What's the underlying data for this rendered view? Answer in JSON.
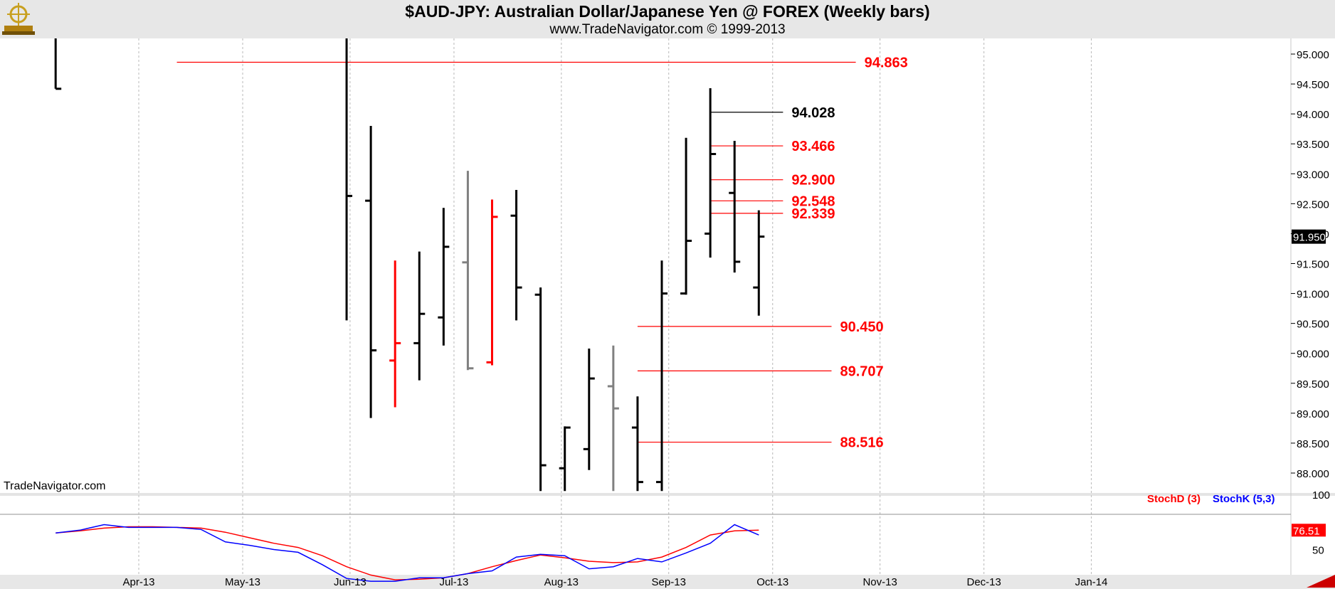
{
  "header": {
    "title": "$AUD-JPY:  Australian Dollar/Japanese Yen @ FOREX  (Weekly bars)",
    "subtitle": "www.TradeNavigator.com © 1999-2013"
  },
  "watermark": "TradeNavigator.com",
  "indicator_legend": {
    "stoch_d": "StochD (3)",
    "stoch_k": "StochK (5,3)"
  },
  "colors": {
    "up_bar": "#000000",
    "down_bar": "#ff0000",
    "neutral_bar": "#808080",
    "level_red": "#ff0000",
    "level_black": "#000000",
    "stoch_d": "#ff0000",
    "stoch_k": "#0000ff",
    "header_bg": "#e7e7e7"
  },
  "chart_data": [
    {
      "type": "ohlc",
      "x_type": "weekly-date",
      "x_ticks": [
        "Apr-13",
        "May-13",
        "Jun-13",
        "Jul-13",
        "Aug-13",
        "Sep-13",
        "Oct-13",
        "Nov-13",
        "Dec-13",
        "Jan-14"
      ],
      "y_ticks": [
        "88.000",
        "88.500",
        "89.000",
        "89.500",
        "90.000",
        "90.500",
        "91.000",
        "91.500",
        "92.000",
        "92.500",
        "93.000",
        "93.500",
        "94.000",
        "94.500",
        "95.000"
      ],
      "ylim": [
        87.7,
        95.3
      ],
      "last_price_label": "91.950",
      "last_price": 91.95,
      "bars": [
        {
          "date": "2013-03-08",
          "high": 95.3,
          "low": 94.42,
          "open": 95.3,
          "close": 94.42,
          "color": "black"
        },
        {
          "date": "2013-05-31",
          "high": 95.3,
          "low": 90.55,
          "open": 95.3,
          "close": 92.63,
          "color": "black"
        },
        {
          "date": "2013-06-07",
          "high": 93.8,
          "low": 88.92,
          "open": 92.55,
          "close": 90.05,
          "color": "black"
        },
        {
          "date": "2013-06-14",
          "high": 91.55,
          "low": 89.1,
          "open": 89.88,
          "close": 90.17,
          "color": "red"
        },
        {
          "date": "2013-06-21",
          "high": 91.7,
          "low": 89.55,
          "open": 90.17,
          "close": 90.66,
          "color": "black"
        },
        {
          "date": "2013-06-28",
          "high": 92.43,
          "low": 90.13,
          "open": 90.6,
          "close": 91.78,
          "color": "black"
        },
        {
          "date": "2013-07-05",
          "high": 93.05,
          "low": 89.72,
          "open": 91.52,
          "close": 89.75,
          "color": "gray"
        },
        {
          "date": "2013-07-12",
          "high": 92.57,
          "low": 89.8,
          "open": 89.85,
          "close": 92.28,
          "color": "red"
        },
        {
          "date": "2013-07-19",
          "high": 92.73,
          "low": 90.55,
          "open": 92.3,
          "close": 91.1,
          "color": "black"
        },
        {
          "date": "2013-07-26",
          "high": 91.1,
          "low": 87.7,
          "open": 90.98,
          "close": 88.13,
          "color": "black"
        },
        {
          "date": "2013-08-02",
          "high": 88.78,
          "low": 87.7,
          "open": 88.08,
          "close": 88.76,
          "color": "black"
        },
        {
          "date": "2013-08-09",
          "high": 90.08,
          "low": 88.05,
          "open": 88.4,
          "close": 89.58,
          "color": "black"
        },
        {
          "date": "2013-08-16",
          "high": 90.13,
          "low": 87.7,
          "open": 89.45,
          "close": 89.08,
          "color": "gray"
        },
        {
          "date": "2013-08-23",
          "high": 89.28,
          "low": 87.7,
          "open": 88.76,
          "close": 87.85,
          "color": "black"
        },
        {
          "date": "2013-08-30",
          "high": 91.55,
          "low": 87.7,
          "open": 87.85,
          "close": 91.0,
          "color": "black"
        },
        {
          "date": "2013-09-06",
          "high": 93.6,
          "low": 90.98,
          "open": 91.0,
          "close": 91.88,
          "color": "black"
        },
        {
          "date": "2013-09-13",
          "high": 94.43,
          "low": 91.6,
          "open": 92.0,
          "close": 93.33,
          "color": "black"
        },
        {
          "date": "2013-09-20",
          "high": 93.55,
          "low": 91.35,
          "open": 92.68,
          "close": 91.53,
          "color": "black"
        },
        {
          "date": "2013-09-27",
          "high": 92.39,
          "low": 90.63,
          "open": 91.1,
          "close": 91.95,
          "color": "black"
        }
      ],
      "levels": [
        {
          "label": "94.863",
          "value": 94.863,
          "from": "2013-04-12",
          "to": "2013-10-25",
          "color": "red"
        },
        {
          "label": "94.028",
          "value": 94.028,
          "from": "2013-09-13",
          "to": "2013-10-04",
          "color": "black"
        },
        {
          "label": "93.466",
          "value": 93.466,
          "from": "2013-09-13",
          "to": "2013-10-04",
          "color": "red"
        },
        {
          "label": "92.900",
          "value": 92.9,
          "from": "2013-09-13",
          "to": "2013-10-04",
          "color": "red"
        },
        {
          "label": "92.548",
          "value": 92.548,
          "from": "2013-09-13",
          "to": "2013-10-04",
          "color": "red"
        },
        {
          "label": "92.339",
          "value": 92.339,
          "from": "2013-09-13",
          "to": "2013-10-04",
          "color": "red"
        },
        {
          "label": "90.450",
          "value": 90.45,
          "from": "2013-08-23",
          "to": "2013-10-18",
          "color": "red"
        },
        {
          "label": "89.707",
          "value": 89.707,
          "from": "2013-08-23",
          "to": "2013-10-18",
          "color": "red"
        },
        {
          "label": "88.516",
          "value": 88.516,
          "from": "2013-08-23",
          "to": "2013-10-18",
          "color": "red"
        }
      ]
    },
    {
      "type": "line",
      "y_ticks": [
        "100",
        "50"
      ],
      "ylim": [
        0,
        100
      ],
      "last_value_d": "76.51",
      "series": [
        {
          "name": "StochD (3)",
          "color": "red",
          "x": [
            "2013-03-08",
            "2013-03-15",
            "2013-03-22",
            "2013-03-29",
            "2013-04-05",
            "2013-04-12",
            "2013-04-19",
            "2013-04-26",
            "2013-05-03",
            "2013-05-10",
            "2013-05-17",
            "2013-05-24",
            "2013-05-31",
            "2013-06-07",
            "2013-06-14",
            "2013-06-21",
            "2013-06-28",
            "2013-07-05",
            "2013-07-12",
            "2013-07-19",
            "2013-07-26",
            "2013-08-02",
            "2013-08-09",
            "2013-08-16",
            "2013-08-23",
            "2013-08-30",
            "2013-09-06",
            "2013-09-13",
            "2013-09-20",
            "2013-09-27"
          ],
          "values": [
            73,
            76,
            80,
            82,
            82,
            81,
            80,
            74,
            66,
            58,
            52,
            40,
            24,
            12,
            5,
            6,
            8,
            14,
            24,
            33,
            41,
            37,
            32,
            30,
            31,
            38,
            52,
            70,
            76,
            77
          ]
        },
        {
          "name": "StochK (5,3)",
          "color": "blue",
          "x": [
            "2013-03-08",
            "2013-03-15",
            "2013-03-22",
            "2013-03-29",
            "2013-04-05",
            "2013-04-12",
            "2013-04-19",
            "2013-04-26",
            "2013-05-03",
            "2013-05-10",
            "2013-05-17",
            "2013-05-24",
            "2013-05-31",
            "2013-06-07",
            "2013-06-14",
            "2013-06-21",
            "2013-06-28",
            "2013-07-05",
            "2013-07-12",
            "2013-07-19",
            "2013-07-26",
            "2013-08-02",
            "2013-08-09",
            "2013-08-16",
            "2013-08-23",
            "2013-08-30",
            "2013-09-06",
            "2013-09-13",
            "2013-09-20",
            "2013-09-27"
          ],
          "values": [
            73,
            77,
            85,
            81,
            81,
            81,
            78,
            60,
            55,
            49,
            45,
            27,
            7,
            3,
            3,
            8,
            8,
            14,
            18,
            38,
            42,
            40,
            21,
            24,
            36,
            31,
            44,
            58,
            85,
            70
          ]
        }
      ]
    }
  ]
}
